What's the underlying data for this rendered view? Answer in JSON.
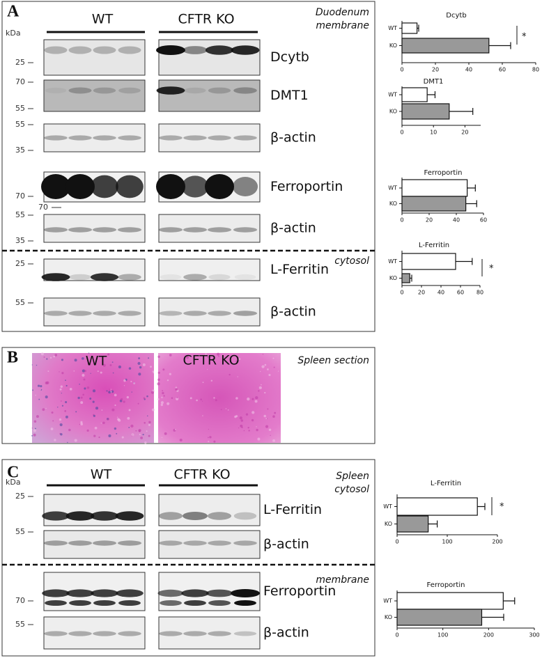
{
  "panels": [
    {
      "label": "A",
      "kda": "kDa",
      "groups": [
        "WT",
        "CFTR KO"
      ],
      "tissue": [
        "Duodenum",
        "membrane"
      ],
      "section2": "cytosol",
      "rows": [
        {
          "protein": "Dcytb",
          "markers": [
            "25"
          ]
        },
        {
          "protein": "DMT1",
          "markers": [
            "70",
            "55"
          ]
        },
        {
          "protein": "β-actin",
          "markers": [
            "55",
            "35"
          ]
        },
        {
          "protein": "Ferroportin",
          "markers": [
            "70",
            "70"
          ]
        },
        {
          "protein": "β-actin",
          "markers": [
            "55",
            "35"
          ]
        },
        {
          "protein": "L-Ferritin",
          "markers": [
            "25"
          ]
        },
        {
          "protein": "β-actin",
          "markers": [
            "55"
          ]
        }
      ]
    },
    {
      "label": "B",
      "groups": [
        "WT",
        "CFTR KO"
      ],
      "tissue": "Spleen section"
    },
    {
      "label": "C",
      "kda": "kDa",
      "groups": [
        "WT",
        "CFTR KO"
      ],
      "tissue": [
        "Spleen",
        "cytosol"
      ],
      "section2": "membrane",
      "rows": [
        {
          "protein": "L-Ferritin",
          "markers": [
            "25"
          ]
        },
        {
          "protein": "β-actin",
          "markers": [
            "55"
          ]
        },
        {
          "protein": "Ferroportin",
          "markers": [
            "70"
          ]
        },
        {
          "protein": "β-actin",
          "markers": [
            "55"
          ]
        }
      ]
    }
  ],
  "chart_data": [
    {
      "type": "bar",
      "title": "Dcytb",
      "categories": [
        "WT",
        "KO"
      ],
      "values": [
        9,
        52
      ],
      "errors": [
        1,
        13
      ],
      "colors": [
        "#ffffff",
        "#999999"
      ],
      "xlim": [
        0,
        80
      ],
      "xticks": [
        0,
        20,
        40,
        60,
        80
      ],
      "significance": "*"
    },
    {
      "type": "bar",
      "title": "DMT1",
      "categories": [
        "WT",
        "KO"
      ],
      "values": [
        8,
        15
      ],
      "errors": [
        2.5,
        7.5
      ],
      "colors": [
        "#ffffff",
        "#999999"
      ],
      "xlim": [
        0,
        25
      ],
      "xticks": [
        0,
        10,
        20
      ]
    },
    {
      "type": "bar",
      "title": "Ferroportin",
      "categories": [
        "WT",
        "KO"
      ],
      "values": [
        48,
        47
      ],
      "errors": [
        6,
        8
      ],
      "colors": [
        "#ffffff",
        "#999999"
      ],
      "xlim": [
        0,
        60
      ],
      "xticks": [
        0,
        20,
        40,
        60
      ]
    },
    {
      "type": "bar",
      "title": "L-Ferritin",
      "categories": [
        "WT",
        "KO"
      ],
      "values": [
        55,
        8
      ],
      "errors": [
        17,
        2
      ],
      "colors": [
        "#ffffff",
        "#999999"
      ],
      "xlim": [
        0,
        80
      ],
      "xticks": [
        0,
        20,
        40,
        60,
        80
      ],
      "significance": "*"
    },
    {
      "type": "bar",
      "title": "L-Ferritin",
      "categories": [
        "WT",
        "KO"
      ],
      "values": [
        160,
        62
      ],
      "errors": [
        15,
        18
      ],
      "colors": [
        "#ffffff",
        "#999999"
      ],
      "xlim": [
        0,
        200
      ],
      "xticks": [
        0,
        100,
        200
      ],
      "significance": "*"
    },
    {
      "type": "bar",
      "title": "Ferroportin",
      "categories": [
        "WT",
        "KO"
      ],
      "values": [
        232,
        185
      ],
      "errors": [
        25,
        48
      ],
      "colors": [
        "#ffffff",
        "#999999"
      ],
      "xlim": [
        0,
        300
      ],
      "xticks": [
        0,
        100,
        200,
        300
      ]
    }
  ]
}
